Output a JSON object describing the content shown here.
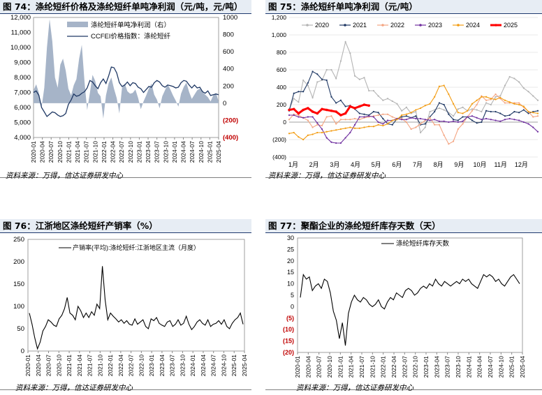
{
  "figures": [
    {
      "title": "图 74：涤纶短纤价格及涤纶短纤单吨净利润（元/吨，元/吨）",
      "source": "资料来源：万得，信达证券研发中心"
    },
    {
      "title": "图 75：涤纶短纤单吨净利润（元/吨）",
      "source": "资料来源：万得，信达证券研发中心"
    },
    {
      "title": "图 76：江浙地区涤纶短纤产销率（%）",
      "source": "资料来源：万得，信达证券研发中心"
    },
    {
      "title": "图 77：聚酯企业的涤纶短纤库存天数（天）",
      "source": "资料来源：万得，信达证券研发中心"
    }
  ],
  "colors": {
    "navy": "#1f3864",
    "area": "#a6b4c8",
    "red": "#c00000",
    "title_bg": "#e7edf4"
  },
  "chart_data": [
    {
      "type": "line",
      "title": "涤纶短纤价格及涤纶短纤单吨净利润（元/吨，元/吨）",
      "x_ticks": [
        "2020-01",
        "2020-04",
        "2020-07",
        "2020-10",
        "2021-01",
        "2021-04",
        "2021-07",
        "2021-10",
        "2022-01",
        "2022-04",
        "2022-07",
        "2022-10",
        "2023-01",
        "2023-04",
        "2023-07",
        "2023-10",
        "2024-01",
        "2024-04",
        "2024-07",
        "2024-10",
        "2025-01",
        "2025-04"
      ],
      "yleft": {
        "ticks": [
          "4,000",
          "5,000",
          "6,000",
          "7,000",
          "8,000",
          "9,000",
          "10,000",
          "11,000",
          "12,000"
        ],
        "lim": [
          4000,
          12000
        ]
      },
      "yright": {
        "ticks": [
          "(400)",
          "(200)",
          "0",
          "200",
          "400",
          "600",
          "800",
          "1000"
        ],
        "lim": [
          -400,
          1000
        ]
      },
      "series": [
        {
          "name": "涤纶短纤单吨净利润（右）",
          "kind": "area",
          "axis": "right",
          "values": [
            150,
            220,
            120,
            -50,
            180,
            650,
            980,
            720,
            300,
            180,
            450,
            520,
            380,
            170,
            90,
            210,
            280,
            520,
            680,
            250,
            -80,
            120,
            330,
            260,
            120,
            80,
            -180,
            90,
            230,
            300,
            170,
            60,
            -120,
            180,
            230,
            140,
            110,
            120,
            160,
            60,
            -70,
            20,
            90,
            170,
            230,
            100,
            40,
            -60,
            80,
            150,
            220,
            160,
            90,
            30,
            -40,
            110,
            190,
            240,
            130,
            50,
            100,
            150,
            170,
            130,
            100,
            70,
            20,
            90,
            120,
            20
          ]
        },
        {
          "name": "CCFEI价格指数：涤纶短纤",
          "kind": "line",
          "axis": "left",
          "values": [
            7000,
            7100,
            6800,
            6000,
            5700,
            5400,
            5550,
            5700,
            5650,
            5500,
            5400,
            5450,
            5600,
            6200,
            6500,
            6900,
            6750,
            6800,
            6950,
            7050,
            7300,
            7800,
            7700,
            7450,
            7250,
            7650,
            7900,
            7600,
            8100,
            8700,
            8650,
            8300,
            7650,
            7400,
            7500,
            7700,
            7450,
            7650,
            7600,
            7350,
            7250,
            7000,
            7200,
            7400,
            7350,
            7650,
            7800,
            7700,
            7450,
            7350,
            7500,
            7450,
            7400,
            7300,
            7350,
            7650,
            7800,
            7750,
            7500,
            7300,
            7500,
            7300,
            7350,
            7050,
            6950,
            7100,
            6800,
            6850,
            6900,
            6850
          ]
        }
      ]
    },
    {
      "type": "line",
      "title": "涤纶短纤单吨净利润（元/吨）",
      "x_ticks": [
        "1月",
        "2月",
        "3月",
        "4月",
        "5月",
        "6月",
        "7月",
        "8月",
        "9月",
        "10月",
        "11月",
        "12月"
      ],
      "y_ticks": [
        "(400)",
        "(200)",
        "0",
        "200",
        "400",
        "600",
        "800",
        "1,000",
        "1,200"
      ],
      "ylim": [
        -400,
        1200
      ],
      "series": [
        {
          "name": "2020",
          "color": "#b4b4b4",
          "values": [
            150,
            270,
            230,
            480,
            420,
            280,
            460,
            480,
            600,
            600,
            500,
            700,
            920,
            790,
            530,
            490,
            510,
            360,
            360,
            300,
            250,
            270,
            240,
            210,
            130,
            170,
            100,
            120,
            -120,
            -60,
            120,
            140,
            160,
            140,
            110,
            70,
            150,
            170,
            130,
            150,
            140,
            120,
            220,
            200,
            290,
            300,
            420,
            520,
            500,
            460,
            390,
            350,
            300,
            250
          ]
        },
        {
          "name": "2021",
          "color": "#1f3864",
          "values": [
            130,
            330,
            350,
            350,
            450,
            580,
            550,
            490,
            480,
            290,
            220,
            250,
            180,
            190,
            150,
            100,
            90,
            80,
            120,
            110,
            40,
            -20,
            -30,
            40,
            60,
            70,
            50,
            70,
            -30,
            -20,
            60,
            120,
            220,
            200,
            90,
            30,
            20,
            60,
            60,
            20,
            -10,
            0,
            130,
            120,
            120,
            100,
            70,
            80,
            120,
            110,
            140,
            100,
            120,
            130
          ]
        },
        {
          "name": "2022",
          "color": "#f4a582",
          "values": [
            30,
            90,
            80,
            50,
            20,
            -60,
            -30,
            -40,
            60,
            70,
            -20,
            30,
            30,
            30,
            40,
            30,
            50,
            60,
            70,
            80,
            90,
            90,
            60,
            40,
            40,
            0,
            -80,
            -60,
            -20,
            20,
            50,
            -30,
            -30,
            -150,
            -250,
            -220,
            -80,
            -20,
            60,
            130,
            200,
            300,
            250,
            260,
            320,
            270,
            220,
            220,
            220,
            220,
            170,
            120,
            60,
            70
          ]
        },
        {
          "name": "2023",
          "color": "#7030a0",
          "values": [
            80,
            80,
            60,
            50,
            60,
            60,
            -10,
            -80,
            -180,
            -230,
            -240,
            -240,
            -180,
            -120,
            -30,
            60,
            60,
            70,
            60,
            0,
            -20,
            20,
            20,
            40,
            30,
            30,
            50,
            40,
            40,
            30,
            20,
            30,
            10,
            10,
            0,
            10,
            0,
            10,
            60,
            70,
            50,
            30,
            40,
            30,
            20,
            10,
            30,
            40,
            30,
            20,
            0,
            -20,
            -60,
            -110
          ]
        },
        {
          "name": "2024",
          "color": "#f39c12",
          "values": [
            -130,
            -120,
            -170,
            -200,
            -150,
            -140,
            -120,
            -120,
            -110,
            -100,
            -90,
            -80,
            -70,
            -60,
            -70,
            -70,
            -60,
            -50,
            -50,
            -30,
            -40,
            -20,
            20,
            30,
            80,
            90,
            110,
            140,
            160,
            190,
            210,
            290,
            410,
            420,
            320,
            210,
            110,
            100,
            130,
            210,
            250,
            290,
            290,
            270,
            260,
            280,
            250,
            230,
            210,
            200,
            180,
            120,
            110,
            100
          ]
        },
        {
          "name": "2025",
          "color": "#ff0000",
          "values": [
            140,
            150,
            100,
            140,
            160,
            120,
            100,
            150,
            140,
            130,
            120,
            80,
            100,
            180,
            160,
            180,
            200,
            190
          ]
        }
      ]
    },
    {
      "type": "line",
      "title": "江浙地区涤纶短纤产销率（%）",
      "x_ticks": [
        "2020-01",
        "2020-04",
        "2020-07",
        "2020-10",
        "2021-01",
        "2021-04",
        "2021-07",
        "2021-10",
        "2022-01",
        "2022-04",
        "2022-07",
        "2022-10",
        "2023-01",
        "2023-04",
        "2023-07",
        "2023-10",
        "2024-01",
        "2024-04",
        "2024-07",
        "2024-10",
        "2025-01",
        "2025-04"
      ],
      "y_ticks": [
        "0",
        "50",
        "100",
        "150",
        "200",
        "250"
      ],
      "ylim": [
        0,
        250
      ],
      "series": [
        {
          "name": "产销率(平均):涤纶短纤:江浙地区主流（月度）",
          "values": [
            85,
            60,
            30,
            5,
            20,
            45,
            55,
            70,
            65,
            58,
            55,
            72,
            80,
            95,
            120,
            85,
            80,
            70,
            100,
            90,
            75,
            85,
            75,
            88,
            80,
            105,
            95,
            190,
            115,
            70,
            85,
            78,
            72,
            65,
            70,
            62,
            68,
            60,
            58,
            72,
            60,
            65,
            70,
            55,
            50,
            72,
            68,
            75,
            62,
            58,
            55,
            65,
            68,
            55,
            60,
            70,
            58,
            62,
            78,
            60,
            48,
            55,
            65,
            70,
            62,
            58,
            70,
            55,
            60,
            62,
            68,
            60,
            70,
            55,
            50,
            62,
            70,
            75,
            85,
            60
          ]
        }
      ]
    },
    {
      "type": "line",
      "title": "聚酯企业的涤纶短纤库存天数（天）",
      "x_ticks": [
        "2020-01",
        "2020-04",
        "2020-07",
        "2020-10",
        "2021-01",
        "2021-04",
        "2021-07",
        "2021-10",
        "2022-01",
        "2022-04",
        "2022-07",
        "2022-10",
        "2023-01",
        "2023-04",
        "2023-07",
        "2023-10",
        "2024-01",
        "2024-04",
        "2024-07",
        "2024-10",
        "2025-01",
        "2025-04"
      ],
      "y_ticks": [
        "(20)",
        "(15)",
        "(10)",
        "(5)",
        "0",
        "5",
        "10",
        "15",
        "20",
        "25",
        "30"
      ],
      "ylim": [
        -20,
        30
      ],
      "series": [
        {
          "name": "涤纶短纤库存天数",
          "values": [
            4,
            14,
            12,
            13,
            7,
            9,
            10,
            8,
            12,
            11,
            6,
            -2,
            -6,
            -14,
            -7,
            -17,
            -3,
            2,
            5,
            3,
            2,
            4,
            3,
            1,
            0,
            1,
            3,
            0,
            -1,
            2,
            4,
            3,
            6,
            5,
            4,
            7,
            8,
            7,
            5,
            6,
            8,
            9,
            8,
            10,
            9,
            12,
            10,
            9,
            11,
            10,
            9,
            10,
            11,
            10,
            12,
            11,
            12,
            10,
            9,
            8,
            11,
            14,
            13,
            14,
            13,
            11,
            12,
            10,
            9,
            11,
            13,
            14,
            12,
            10
          ]
        }
      ]
    }
  ]
}
